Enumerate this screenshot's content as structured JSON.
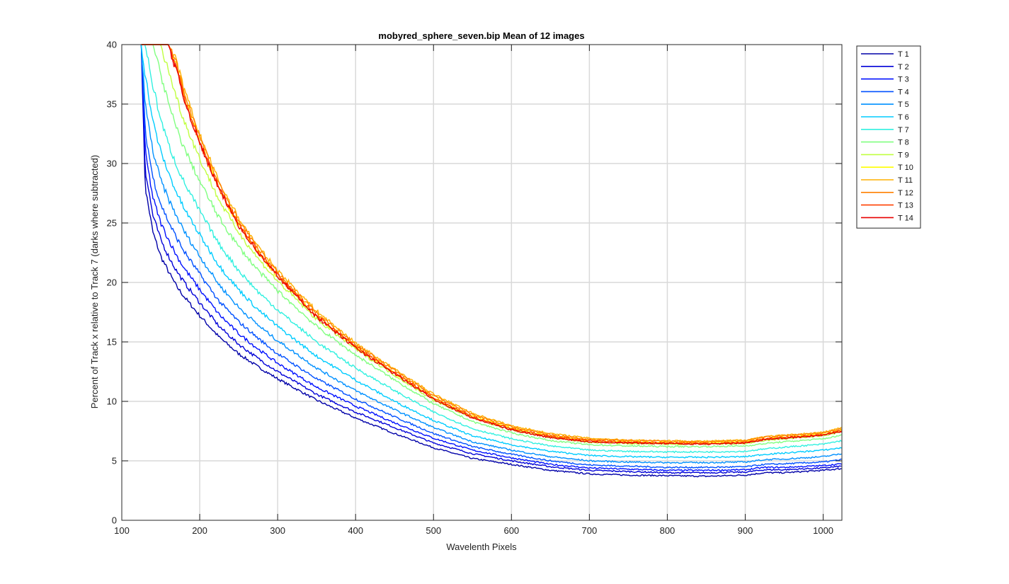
{
  "chart_data": {
    "type": "line",
    "title": "mobyred_sphere_seven.bip  Mean of 12 images",
    "xlabel": "Wavelenth Pixels",
    "ylabel": "Percent of Track x relative to Track 7 (darks where subtracted)",
    "xlim": [
      100,
      1024
    ],
    "ylim": [
      0,
      40
    ],
    "xticks": [
      100,
      200,
      300,
      400,
      500,
      600,
      700,
      800,
      900,
      1000
    ],
    "yticks": [
      0,
      5,
      10,
      15,
      20,
      25,
      30,
      35,
      40
    ],
    "grid": true,
    "legend_position": "outside-right",
    "x": [
      125,
      130,
      140,
      150,
      160,
      170,
      180,
      200,
      225,
      250,
      275,
      300,
      350,
      400,
      450,
      500,
      550,
      600,
      650,
      700,
      750,
      800,
      850,
      900,
      925,
      950,
      1000,
      1024
    ],
    "series": [
      {
        "name": "T 1",
        "color": "#0000A8",
        "values": [
          40,
          28.0,
          24.2,
          22.2,
          20.9,
          19.7,
          18.8,
          17.2,
          15.4,
          14.0,
          12.9,
          11.9,
          10.1,
          8.6,
          7.3,
          6.1,
          5.2,
          4.7,
          4.2,
          3.9,
          3.8,
          3.75,
          3.7,
          3.8,
          4.0,
          4.0,
          4.2,
          4.35
        ]
      },
      {
        "name": "T 2",
        "color": "#0000D8",
        "values": [
          40,
          29.5,
          25.6,
          23.6,
          22.2,
          21.0,
          20.0,
          18.3,
          16.3,
          14.8,
          13.6,
          12.5,
          10.6,
          9.1,
          7.8,
          6.5,
          5.6,
          5.0,
          4.5,
          4.2,
          4.1,
          4.0,
          4.0,
          4.05,
          4.25,
          4.25,
          4.4,
          4.55
        ]
      },
      {
        "name": "T 3",
        "color": "#0010FF",
        "values": [
          40,
          31.0,
          27.1,
          25.0,
          23.6,
          22.3,
          21.2,
          19.4,
          17.3,
          15.7,
          14.4,
          13.2,
          11.2,
          9.6,
          8.2,
          6.9,
          5.9,
          5.25,
          4.7,
          4.4,
          4.3,
          4.2,
          4.2,
          4.25,
          4.45,
          4.45,
          4.6,
          4.75
        ]
      },
      {
        "name": "T 4",
        "color": "#0050FF",
        "values": [
          40,
          32.7,
          28.8,
          26.6,
          25.1,
          23.8,
          22.6,
          20.7,
          18.4,
          16.7,
          15.3,
          14.0,
          11.9,
          10.2,
          8.7,
          7.3,
          6.2,
          5.55,
          5.0,
          4.65,
          4.55,
          4.45,
          4.45,
          4.5,
          4.7,
          4.75,
          4.9,
          5.1
        ]
      },
      {
        "name": "T 5",
        "color": "#0090FF",
        "values": [
          40,
          35.0,
          31.0,
          28.6,
          27.0,
          25.6,
          24.3,
          22.2,
          19.8,
          17.9,
          16.4,
          15.1,
          12.8,
          10.9,
          9.3,
          7.8,
          6.6,
          5.9,
          5.35,
          5.0,
          4.9,
          4.85,
          4.85,
          4.9,
          5.1,
          5.15,
          5.35,
          5.6
        ]
      },
      {
        "name": "T 6",
        "color": "#00CCFF",
        "values": [
          40,
          37.5,
          33.5,
          31.0,
          29.2,
          27.6,
          26.2,
          24.0,
          21.4,
          19.4,
          17.7,
          16.3,
          13.8,
          11.8,
          10.0,
          8.4,
          7.1,
          6.35,
          5.8,
          5.45,
          5.35,
          5.3,
          5.3,
          5.35,
          5.55,
          5.65,
          5.9,
          6.1
        ]
      },
      {
        "name": "T 7",
        "color": "#30F0E0",
        "values": [
          40,
          40,
          36.5,
          33.7,
          31.6,
          29.9,
          28.4,
          26.0,
          23.2,
          21.0,
          19.2,
          17.7,
          15.0,
          12.8,
          10.9,
          9.1,
          7.7,
          6.85,
          6.25,
          5.9,
          5.8,
          5.75,
          5.75,
          5.8,
          6.0,
          6.15,
          6.4,
          6.7
        ]
      },
      {
        "name": "T 8",
        "color": "#80FF80",
        "values": [
          40,
          40,
          40,
          37.5,
          35.0,
          33.0,
          31.3,
          28.5,
          25.4,
          23.0,
          21.0,
          19.3,
          16.3,
          13.9,
          11.8,
          9.8,
          8.3,
          7.35,
          6.7,
          6.35,
          6.25,
          6.2,
          6.2,
          6.25,
          6.45,
          6.6,
          6.85,
          7.15
        ]
      },
      {
        "name": "T 9",
        "color": "#C0FF40",
        "values": [
          40,
          40,
          40,
          40,
          37.8,
          35.6,
          33.6,
          30.4,
          26.9,
          24.2,
          22.0,
          20.1,
          16.9,
          14.4,
          12.2,
          10.1,
          8.6,
          7.6,
          6.95,
          6.55,
          6.45,
          6.4,
          6.4,
          6.45,
          6.7,
          6.85,
          7.1,
          7.45
        ]
      },
      {
        "name": "T 10",
        "color": "#FFFF00",
        "values": [
          40,
          40,
          40,
          40,
          40,
          38.2,
          35.7,
          31.8,
          27.8,
          24.8,
          22.5,
          20.5,
          17.2,
          14.6,
          12.4,
          10.3,
          8.75,
          7.75,
          7.1,
          6.7,
          6.6,
          6.55,
          6.55,
          6.6,
          6.85,
          7.0,
          7.25,
          7.6
        ]
      },
      {
        "name": "T 11",
        "color": "#FFB000",
        "values": [
          40,
          40,
          40,
          40,
          40,
          38.6,
          36.2,
          32.4,
          28.4,
          25.4,
          23.0,
          21.0,
          17.6,
          14.9,
          12.7,
          10.6,
          9.0,
          7.95,
          7.3,
          6.9,
          6.75,
          6.7,
          6.65,
          6.75,
          7.05,
          7.15,
          7.4,
          7.8
        ]
      },
      {
        "name": "T 12",
        "color": "#FF8000",
        "values": [
          40,
          40,
          40,
          40,
          40,
          38.4,
          36.0,
          32.2,
          28.2,
          25.2,
          22.8,
          20.8,
          17.4,
          14.8,
          12.6,
          10.5,
          8.9,
          7.85,
          7.2,
          6.8,
          6.7,
          6.65,
          6.6,
          6.7,
          7.0,
          7.1,
          7.35,
          7.7
        ]
      },
      {
        "name": "T 13",
        "color": "#FF4000",
        "values": [
          40,
          40,
          40,
          40,
          40,
          38.0,
          35.6,
          31.8,
          27.9,
          24.9,
          22.6,
          20.6,
          17.2,
          14.6,
          12.4,
          10.3,
          8.7,
          7.7,
          7.05,
          6.7,
          6.55,
          6.5,
          6.45,
          6.55,
          6.85,
          6.95,
          7.2,
          7.55
        ]
      },
      {
        "name": "T 14",
        "color": "#E80000",
        "values": [
          40,
          40,
          40,
          40,
          40,
          37.8,
          35.4,
          31.7,
          27.8,
          24.8,
          22.5,
          20.5,
          17.1,
          14.5,
          12.3,
          10.2,
          8.6,
          7.6,
          6.95,
          6.6,
          6.5,
          6.45,
          6.4,
          6.5,
          6.8,
          6.9,
          7.15,
          7.5
        ]
      }
    ]
  }
}
